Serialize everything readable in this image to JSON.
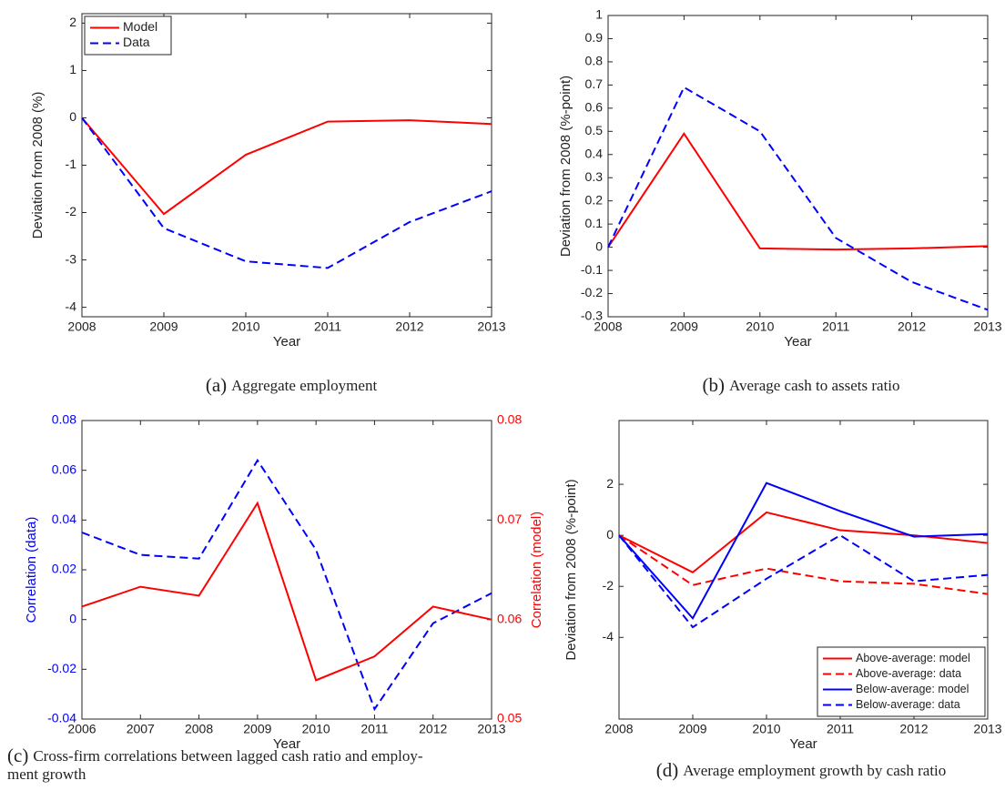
{
  "chart_data": [
    {
      "type": "line",
      "caption_label": "(a)",
      "caption": [
        "Aggregate employment"
      ],
      "xlabel": "Year",
      "ylabel": "Deviation from 2008 (%)",
      "x": [
        2008,
        2009,
        2010,
        2011,
        2012,
        2013
      ],
      "xlim": [
        2008,
        2013
      ],
      "xticks": [
        2008,
        2009,
        2010,
        2011,
        2012,
        2013
      ],
      "ylim": [
        -4.2,
        2.2
      ],
      "yticks": [
        -4,
        -3,
        -2,
        -1,
        0,
        1,
        2
      ],
      "legend": "upper left",
      "series": [
        {
          "name": "Model",
          "color": "#ff0000",
          "style": "solid",
          "values": [
            0,
            -2.03,
            -0.78,
            -0.08,
            -0.05,
            -0.13
          ]
        },
        {
          "name": "Data",
          "color": "#0000ff",
          "style": "dashed",
          "values": [
            0,
            -2.33,
            -3.03,
            -3.17,
            -2.2,
            -1.55
          ]
        }
      ]
    },
    {
      "type": "line",
      "caption_label": "(b)",
      "caption": [
        "Average cash to assets ratio"
      ],
      "xlabel": "Year",
      "ylabel": "Deviation from 2008 (%-point)",
      "x": [
        2008,
        2009,
        2010,
        2011,
        2012,
        2013
      ],
      "xlim": [
        2008,
        2013
      ],
      "xticks": [
        2008,
        2009,
        2010,
        2011,
        2012,
        2013
      ],
      "ylim": [
        -0.3,
        1
      ],
      "yticks": [
        -0.3,
        -0.2,
        -0.1,
        0,
        0.1,
        0.2,
        0.3,
        0.4,
        0.5,
        0.6,
        0.7,
        0.8,
        0.9,
        1
      ],
      "series": [
        {
          "color": "#ff0000",
          "style": "solid",
          "values": [
            0,
            0.49,
            -0.005,
            -0.01,
            -0.005,
            0.005
          ]
        },
        {
          "color": "#0000ff",
          "style": "dashed",
          "values": [
            0,
            0.69,
            0.5,
            0.04,
            -0.15,
            -0.27
          ]
        }
      ]
    },
    {
      "type": "line",
      "caption_label": "(c)",
      "caption": [
        "Cross-firm correlations between lagged cash ratio and employ-",
        "ment growth"
      ],
      "xlabel": "Year",
      "ylabel": "Correlation (data)",
      "y2label": "Correlation (model)",
      "ycolor": "#0000ff",
      "y2color": "#ff0000",
      "x": [
        2006,
        2007,
        2008,
        2009,
        2010,
        2011,
        2012,
        2013
      ],
      "xlim": [
        2006,
        2013
      ],
      "xticks": [
        2006,
        2007,
        2008,
        2009,
        2010,
        2011,
        2012,
        2013
      ],
      "ylim": [
        -0.04,
        0.08
      ],
      "yticks": [
        -0.04,
        -0.02,
        0,
        0.02,
        0.04,
        0.06,
        0.08
      ],
      "y2lim": [
        0.05,
        0.08
      ],
      "y2ticks": [
        0.05,
        0.06,
        0.07,
        0.08
      ],
      "series": [
        {
          "color": "#0000ff",
          "style": "dashed",
          "values": [
            0.035,
            0.026,
            0.0245,
            0.064,
            0.028,
            -0.036,
            -0.0015,
            0.0106
          ]
        },
        {
          "color": "#ff0000",
          "style": "solid",
          "axis": "y2",
          "values": [
            0.0613,
            0.0633,
            0.0624,
            0.0717,
            0.0539,
            0.0563,
            0.0613,
            0.06
          ]
        }
      ]
    },
    {
      "type": "line",
      "caption_label": "(d)",
      "caption": [
        "Average employment growth by cash ratio"
      ],
      "xlabel": "Year",
      "ylabel": "Deviation from 2008 (%-point)",
      "x": [
        2008,
        2009,
        2010,
        2011,
        2012,
        2013
      ],
      "xlim": [
        2008,
        2013
      ],
      "xticks": [
        2008,
        2009,
        2010,
        2011,
        2012,
        2013
      ],
      "ylim": [
        -7.2,
        4.5
      ],
      "yticks": [
        -4,
        -2,
        0,
        2
      ],
      "legend": "lower right",
      "series": [
        {
          "name": "Above-average: model",
          "color": "#ff0000",
          "style": "solid",
          "values": [
            0,
            -1.45,
            0.9,
            0.2,
            0.0,
            -0.3
          ]
        },
        {
          "name": "Above-average: data",
          "color": "#ff0000",
          "style": "dashed",
          "values": [
            0,
            -1.95,
            -1.3,
            -1.8,
            -1.9,
            -2.3
          ]
        },
        {
          "name": "Below-average: model",
          "color": "#0000ff",
          "style": "solid",
          "values": [
            0,
            -3.25,
            2.05,
            0.95,
            -0.05,
            0.05
          ]
        },
        {
          "name": "Below-average: data",
          "color": "#0000ff",
          "style": "dashed",
          "values": [
            0,
            -3.6,
            -1.7,
            0.0,
            -1.8,
            -1.55
          ]
        }
      ]
    }
  ]
}
